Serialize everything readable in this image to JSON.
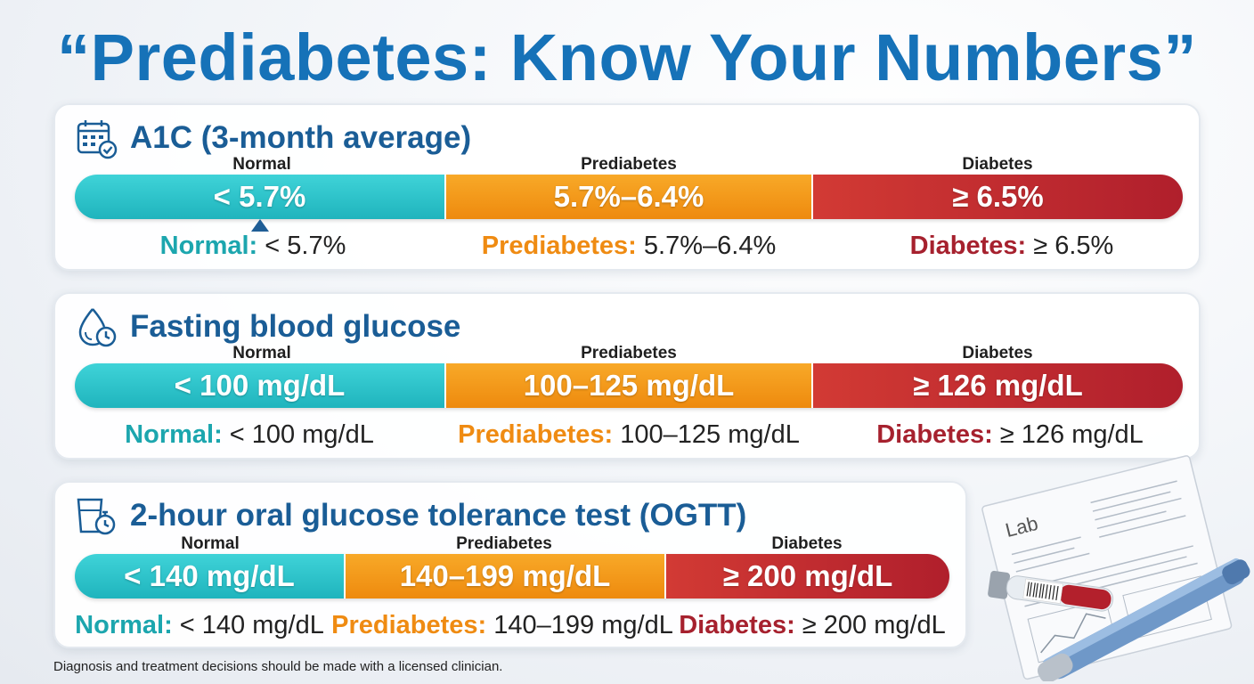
{
  "title": "“Prediabetes: Know Your Numbers”",
  "sections": [
    {
      "title": "A1C (3-month average)",
      "icon": "calendar-check-icon",
      "labels": {
        "normal": "Normal",
        "prediabetes": "Prediabetes",
        "diabetes": "Diabetes"
      },
      "bar": {
        "normal": "< 5.7%",
        "prediabetes": "5.7%–6.4%",
        "diabetes": "≥ 6.5%"
      },
      "captions": {
        "normal_key": "Normal:",
        "normal_val": "< 5.7%",
        "prediabetes_key": "Prediabetes:",
        "prediabetes_val": "5.7%–6.4%",
        "diabetes_key": "Diabetes:",
        "diabetes_val": "≥ 6.5%"
      }
    },
    {
      "title": "Fasting blood glucose",
      "icon": "droplet-clock-icon",
      "labels": {
        "normal": "Normal",
        "prediabetes": "Prediabetes",
        "diabetes": "Diabetes"
      },
      "bar": {
        "normal": "< 100 mg/dL",
        "prediabetes": "100–125 mg/dL",
        "diabetes": "≥ 126 mg/dL"
      },
      "captions": {
        "normal_key": "Normal:",
        "normal_val": "< 100 mg/dL",
        "prediabetes_key": "Prediabetes:",
        "prediabetes_val": "100–125 mg/dL",
        "diabetes_key": "Diabetes:",
        "diabetes_val": "≥ 126 mg/dL"
      }
    },
    {
      "title": "2-hour oral glucose tolerance test (OGTT)",
      "icon": "glass-stopwatch-icon",
      "labels": {
        "normal": "Normal",
        "prediabetes": "Prediabetes",
        "diabetes": "Diabetes"
      },
      "bar": {
        "normal": "< 140 mg/dL",
        "prediabetes": "140–199 mg/dL",
        "diabetes": "≥ 200 mg/dL"
      },
      "captions": {
        "normal_key": "Normal:",
        "normal_val": "< 140 mg/dL",
        "prediabetes_key": "Prediabetes:",
        "prediabetes_val": "140–199 mg/dL",
        "diabetes_key": "Diabetes:",
        "diabetes_val": "≥ 200 mg/dL"
      }
    }
  ],
  "illustration": {
    "lab_text": "Lab",
    "icon": "lab-report-tube-pen-icon"
  },
  "footnote": "Diagnosis and treatment decisions should be made with a licensed clinician.",
  "colors": {
    "title": "#1672b8",
    "normal": "#1fb4bd",
    "prediabetes": "#ee8a0e",
    "diabetes": "#b01f2c"
  }
}
